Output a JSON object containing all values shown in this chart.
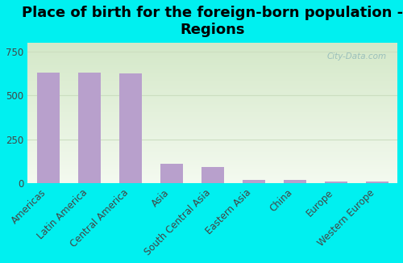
{
  "title": "Place of birth for the foreign-born population -\nRegions",
  "categories": [
    "Americas",
    "Latin America",
    "Central America",
    "Asia",
    "South Central Asia",
    "Eastern Asia",
    "China",
    "Europe",
    "Western Europe"
  ],
  "values": [
    630,
    630,
    625,
    110,
    95,
    18,
    18,
    10,
    12
  ],
  "bar_color": "#b8a0cc",
  "background_color": "#00f0f0",
  "plot_bg_topleft": "#d4e8c8",
  "plot_bg_bottomright": "#f4faf0",
  "ylim": [
    0,
    800
  ],
  "yticks": [
    0,
    250,
    500,
    750
  ],
  "grid_color": "#ccdec0",
  "title_fontsize": 13,
  "tick_fontsize": 8.5,
  "watermark": "City-Data.com"
}
